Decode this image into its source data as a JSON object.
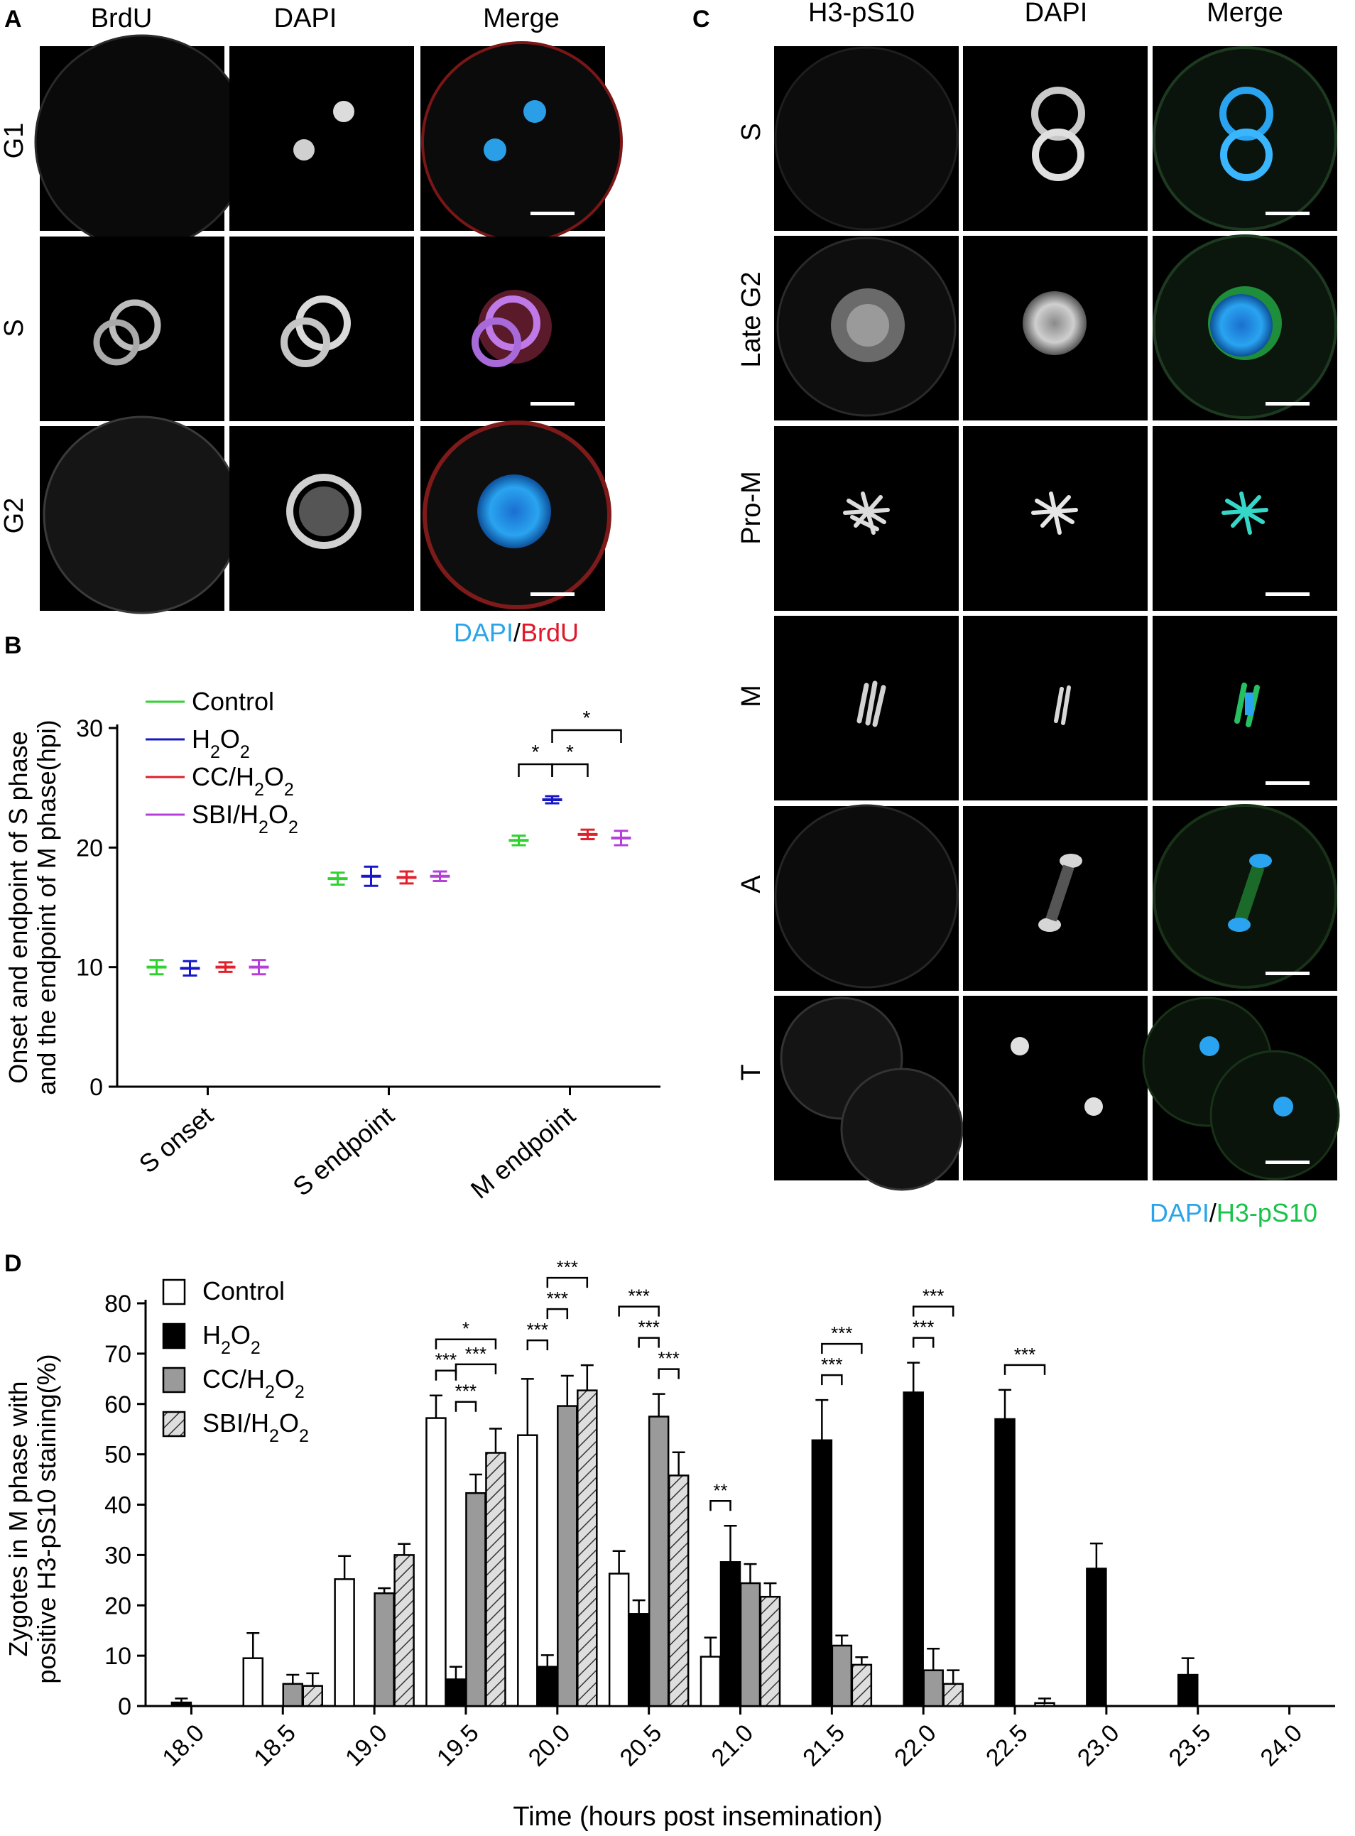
{
  "panel_A": {
    "letter": "A",
    "columns": [
      "BrdU",
      "DAPI",
      "Merge"
    ],
    "rows": [
      "G1",
      "S",
      "G2"
    ],
    "caption": [
      {
        "text": "DAPI",
        "color": "#2aa4e8"
      },
      {
        "text": "/",
        "color": "#000000"
      },
      {
        "text": "BrdU",
        "color": "#e0182a"
      }
    ]
  },
  "panel_C": {
    "letter": "C",
    "columns": [
      "H3-pS10",
      "DAPI",
      "Merge"
    ],
    "rows": [
      "S",
      "Late G2",
      "Pro-M",
      "M",
      "A",
      "T"
    ],
    "caption": [
      {
        "text": "DAPI",
        "color": "#2aa4e8"
      },
      {
        "text": "/",
        "color": "#000000"
      },
      {
        "text": "H3-pS10",
        "color": "#19c24a"
      }
    ]
  },
  "chart_data": [
    {
      "id": "B",
      "letter": "B",
      "type": "scatter",
      "ylabel_lines": [
        "Onset and endpoint of S phase",
        "and the endpoint of M phase(hpi)"
      ],
      "ylim": [
        0,
        30
      ],
      "yticks": [
        0,
        10,
        20,
        30
      ],
      "categories": [
        "S onset",
        "S endpoint",
        "M endpoint"
      ],
      "series": [
        {
          "name": "Control",
          "color": "#2fd22f",
          "values": [
            10.0,
            17.4,
            20.6
          ],
          "err": [
            0.6,
            0.5,
            0.4
          ]
        },
        {
          "name": "H2O2",
          "color": "#1717c8",
          "values": [
            9.9,
            17.6,
            24.0
          ],
          "err": [
            0.6,
            0.8,
            0.3
          ]
        },
        {
          "name": "CC/H2O2",
          "color": "#e0202a",
          "values": [
            10.0,
            17.5,
            21.1
          ],
          "err": [
            0.4,
            0.5,
            0.4
          ]
        },
        {
          "name": "SBI/H2O2",
          "color": "#b53fd8",
          "values": [
            10.0,
            17.6,
            20.8
          ],
          "err": [
            0.6,
            0.4,
            0.6
          ]
        }
      ],
      "legend": [
        {
          "base": "Control",
          "parts": [
            [
              "Control",
              ""
            ]
          ]
        },
        {
          "base": "H2O2",
          "parts": [
            [
              "H",
              "2"
            ],
            [
              "O",
              "2"
            ]
          ]
        },
        {
          "base": "CC/H2O2",
          "parts": [
            [
              "CC/H",
              "2"
            ],
            [
              "O",
              "2"
            ]
          ]
        },
        {
          "base": "SBI/H2O2",
          "parts": [
            [
              "SBI/H",
              "2"
            ],
            [
              "O",
              "2"
            ]
          ]
        }
      ],
      "significance": [
        {
          "category": "M endpoint",
          "from": 0,
          "to": 1,
          "label": "*",
          "level": 0
        },
        {
          "category": "M endpoint",
          "from": 1,
          "to": 2,
          "label": "*",
          "level": 0
        },
        {
          "category": "M endpoint",
          "from": 1,
          "to": 3,
          "label": "*",
          "level": 1
        }
      ]
    },
    {
      "id": "D",
      "letter": "D",
      "type": "bar",
      "xlabel": "Time (hours post insemination)",
      "ylabel_lines": [
        "Zygotes in M phase with",
        "positive H3-pS10 staining(%)"
      ],
      "ylim": [
        0,
        80
      ],
      "yticks": [
        0,
        10,
        20,
        30,
        40,
        50,
        60,
        70,
        80
      ],
      "categories": [
        "18.0",
        "18.5",
        "19.0",
        "19.5",
        "20.0",
        "20.5",
        "21.0",
        "21.5",
        "22.0",
        "22.5",
        "23.0",
        "23.5",
        "24.0"
      ],
      "series": [
        {
          "name": "Control",
          "style": "white",
          "values": [
            0,
            9.5,
            25.2,
            57.2,
            53.8,
            26.3,
            9.8,
            0,
            0,
            0,
            0,
            0,
            0
          ],
          "err": [
            0,
            5.0,
            4.6,
            4.5,
            11.2,
            4.5,
            3.8,
            0,
            0,
            0,
            0,
            0,
            0
          ]
        },
        {
          "name": "H2O2",
          "style": "black",
          "values": [
            0.7,
            0,
            0,
            5.3,
            7.8,
            18.3,
            28.6,
            52.8,
            62.3,
            57.0,
            27.3,
            6.2,
            0
          ],
          "err": [
            0.8,
            0,
            0,
            2.5,
            2.3,
            2.7,
            7.2,
            8.0,
            5.9,
            5.8,
            5.0,
            3.3,
            0
          ]
        },
        {
          "name": "CC/H2O2",
          "style": "gray",
          "values": [
            0,
            4.4,
            22.4,
            42.3,
            59.6,
            57.5,
            24.4,
            12.0,
            7.1,
            0,
            0,
            0,
            0
          ],
          "err": [
            0,
            1.8,
            1.0,
            3.7,
            6.0,
            4.5,
            3.8,
            2.0,
            4.3,
            0,
            0,
            0,
            0
          ]
        },
        {
          "name": "SBI/H2O2",
          "style": "hatch",
          "values": [
            0,
            4.0,
            30.0,
            50.3,
            62.7,
            45.8,
            21.7,
            8.2,
            4.4,
            0.6,
            0,
            0,
            0
          ],
          "err": [
            0,
            2.5,
            2.2,
            4.8,
            5.0,
            4.6,
            2.7,
            1.5,
            2.7,
            0.9,
            0,
            0,
            0
          ]
        }
      ],
      "legend": [
        {
          "base": "Control",
          "parts": [
            [
              "Control",
              ""
            ]
          ]
        },
        {
          "base": "H2O2",
          "parts": [
            [
              "H",
              "2"
            ],
            [
              "O",
              "2"
            ]
          ]
        },
        {
          "base": "CC/H2O2",
          "parts": [
            [
              "CC/H",
              "2"
            ],
            [
              "O",
              "2"
            ]
          ]
        },
        {
          "base": "SBI/H2O2",
          "parts": [
            [
              "SBI/H",
              "2"
            ],
            [
              "O",
              "2"
            ]
          ]
        }
      ],
      "significance": [
        {
          "cat": 3,
          "from": 0,
          "to": 1,
          "label": "***",
          "level": 0
        },
        {
          "cat": 3,
          "from": 0,
          "to": 3,
          "label": "*",
          "level": 1
        },
        {
          "cat": 3,
          "from": 1,
          "to": 2,
          "label": "***",
          "level": -1
        },
        {
          "cat": 3,
          "from": 1,
          "to": 3,
          "label": "***",
          "level": 0.2
        },
        {
          "cat": 4,
          "from": 0,
          "to": 1,
          "label": "***",
          "level": 0
        },
        {
          "cat": 4,
          "from": 1,
          "to": 2,
          "label": "***",
          "level": 1
        },
        {
          "cat": 4,
          "from": 1,
          "to": 3,
          "label": "***",
          "level": 2
        },
        {
          "cat": 5,
          "from": 1,
          "to": 2,
          "label": "***",
          "level": 1
        },
        {
          "cat": 5,
          "from": 0,
          "to": 2,
          "label": "***",
          "level": 2
        },
        {
          "cat": 5,
          "from": 2,
          "to": 3,
          "label": "***",
          "level": 0
        },
        {
          "cat": 6,
          "from": 0,
          "to": 1,
          "label": "**",
          "level": 0
        },
        {
          "cat": 7,
          "from": 1,
          "to": 2,
          "label": "***",
          "level": 0
        },
        {
          "cat": 7,
          "from": 1,
          "to": 3,
          "label": "***",
          "level": 1
        },
        {
          "cat": 8,
          "from": 1,
          "to": 2,
          "label": "***",
          "level": 0
        },
        {
          "cat": 8,
          "from": 1,
          "to": 3,
          "label": "***",
          "level": 1
        },
        {
          "cat": 9,
          "from": 1,
          "to": 3,
          "label": "***",
          "level": 0
        }
      ]
    }
  ]
}
